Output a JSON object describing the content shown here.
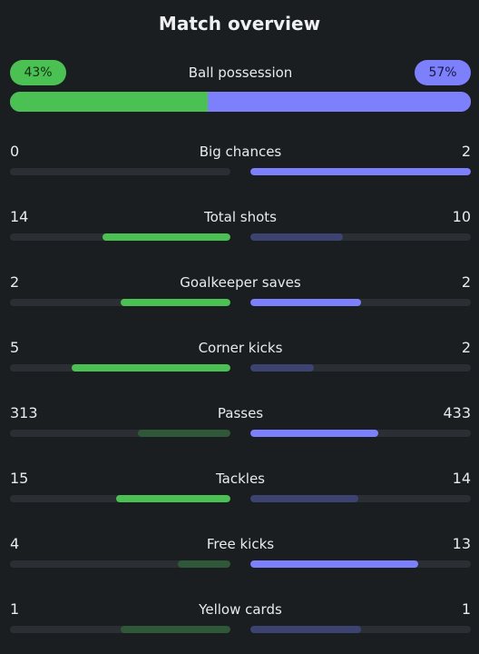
{
  "title": "Match overview",
  "possession": {
    "label": "Ball possession",
    "home": "43%",
    "away": "57%",
    "home_fraction": 0.43,
    "away_fraction": 0.57
  },
  "colors": {
    "home_strong": "#4cc153",
    "home_weak": "#2e5837",
    "away_strong": "#7d80fb",
    "away_weak": "#3c4371",
    "track": "#2b2f33",
    "background": "#1b1e21"
  },
  "stats": [
    {
      "label": "Big chances",
      "home": "0",
      "away": "2",
      "home_fill": 0.0,
      "away_fill": 1.0,
      "home_strong": false,
      "away_strong": true
    },
    {
      "label": "Total shots",
      "home": "14",
      "away": "10",
      "home_fill": 0.58,
      "away_fill": 0.42,
      "home_strong": true,
      "away_strong": false
    },
    {
      "label": "Goalkeeper saves",
      "home": "2",
      "away": "2",
      "home_fill": 0.5,
      "away_fill": 0.5,
      "home_strong": true,
      "away_strong": true
    },
    {
      "label": "Corner kicks",
      "home": "5",
      "away": "2",
      "home_fill": 0.72,
      "away_fill": 0.29,
      "home_strong": true,
      "away_strong": false
    },
    {
      "label": "Passes",
      "home": "313",
      "away": "433",
      "home_fill": 0.42,
      "away_fill": 0.58,
      "home_strong": false,
      "away_strong": true
    },
    {
      "label": "Tackles",
      "home": "15",
      "away": "14",
      "home_fill": 0.52,
      "away_fill": 0.49,
      "home_strong": true,
      "away_strong": false
    },
    {
      "label": "Free kicks",
      "home": "4",
      "away": "13",
      "home_fill": 0.24,
      "away_fill": 0.76,
      "home_strong": false,
      "away_strong": true
    },
    {
      "label": "Yellow cards",
      "home": "1",
      "away": "1",
      "home_fill": 0.5,
      "away_fill": 0.5,
      "home_strong": false,
      "away_strong": false
    }
  ]
}
